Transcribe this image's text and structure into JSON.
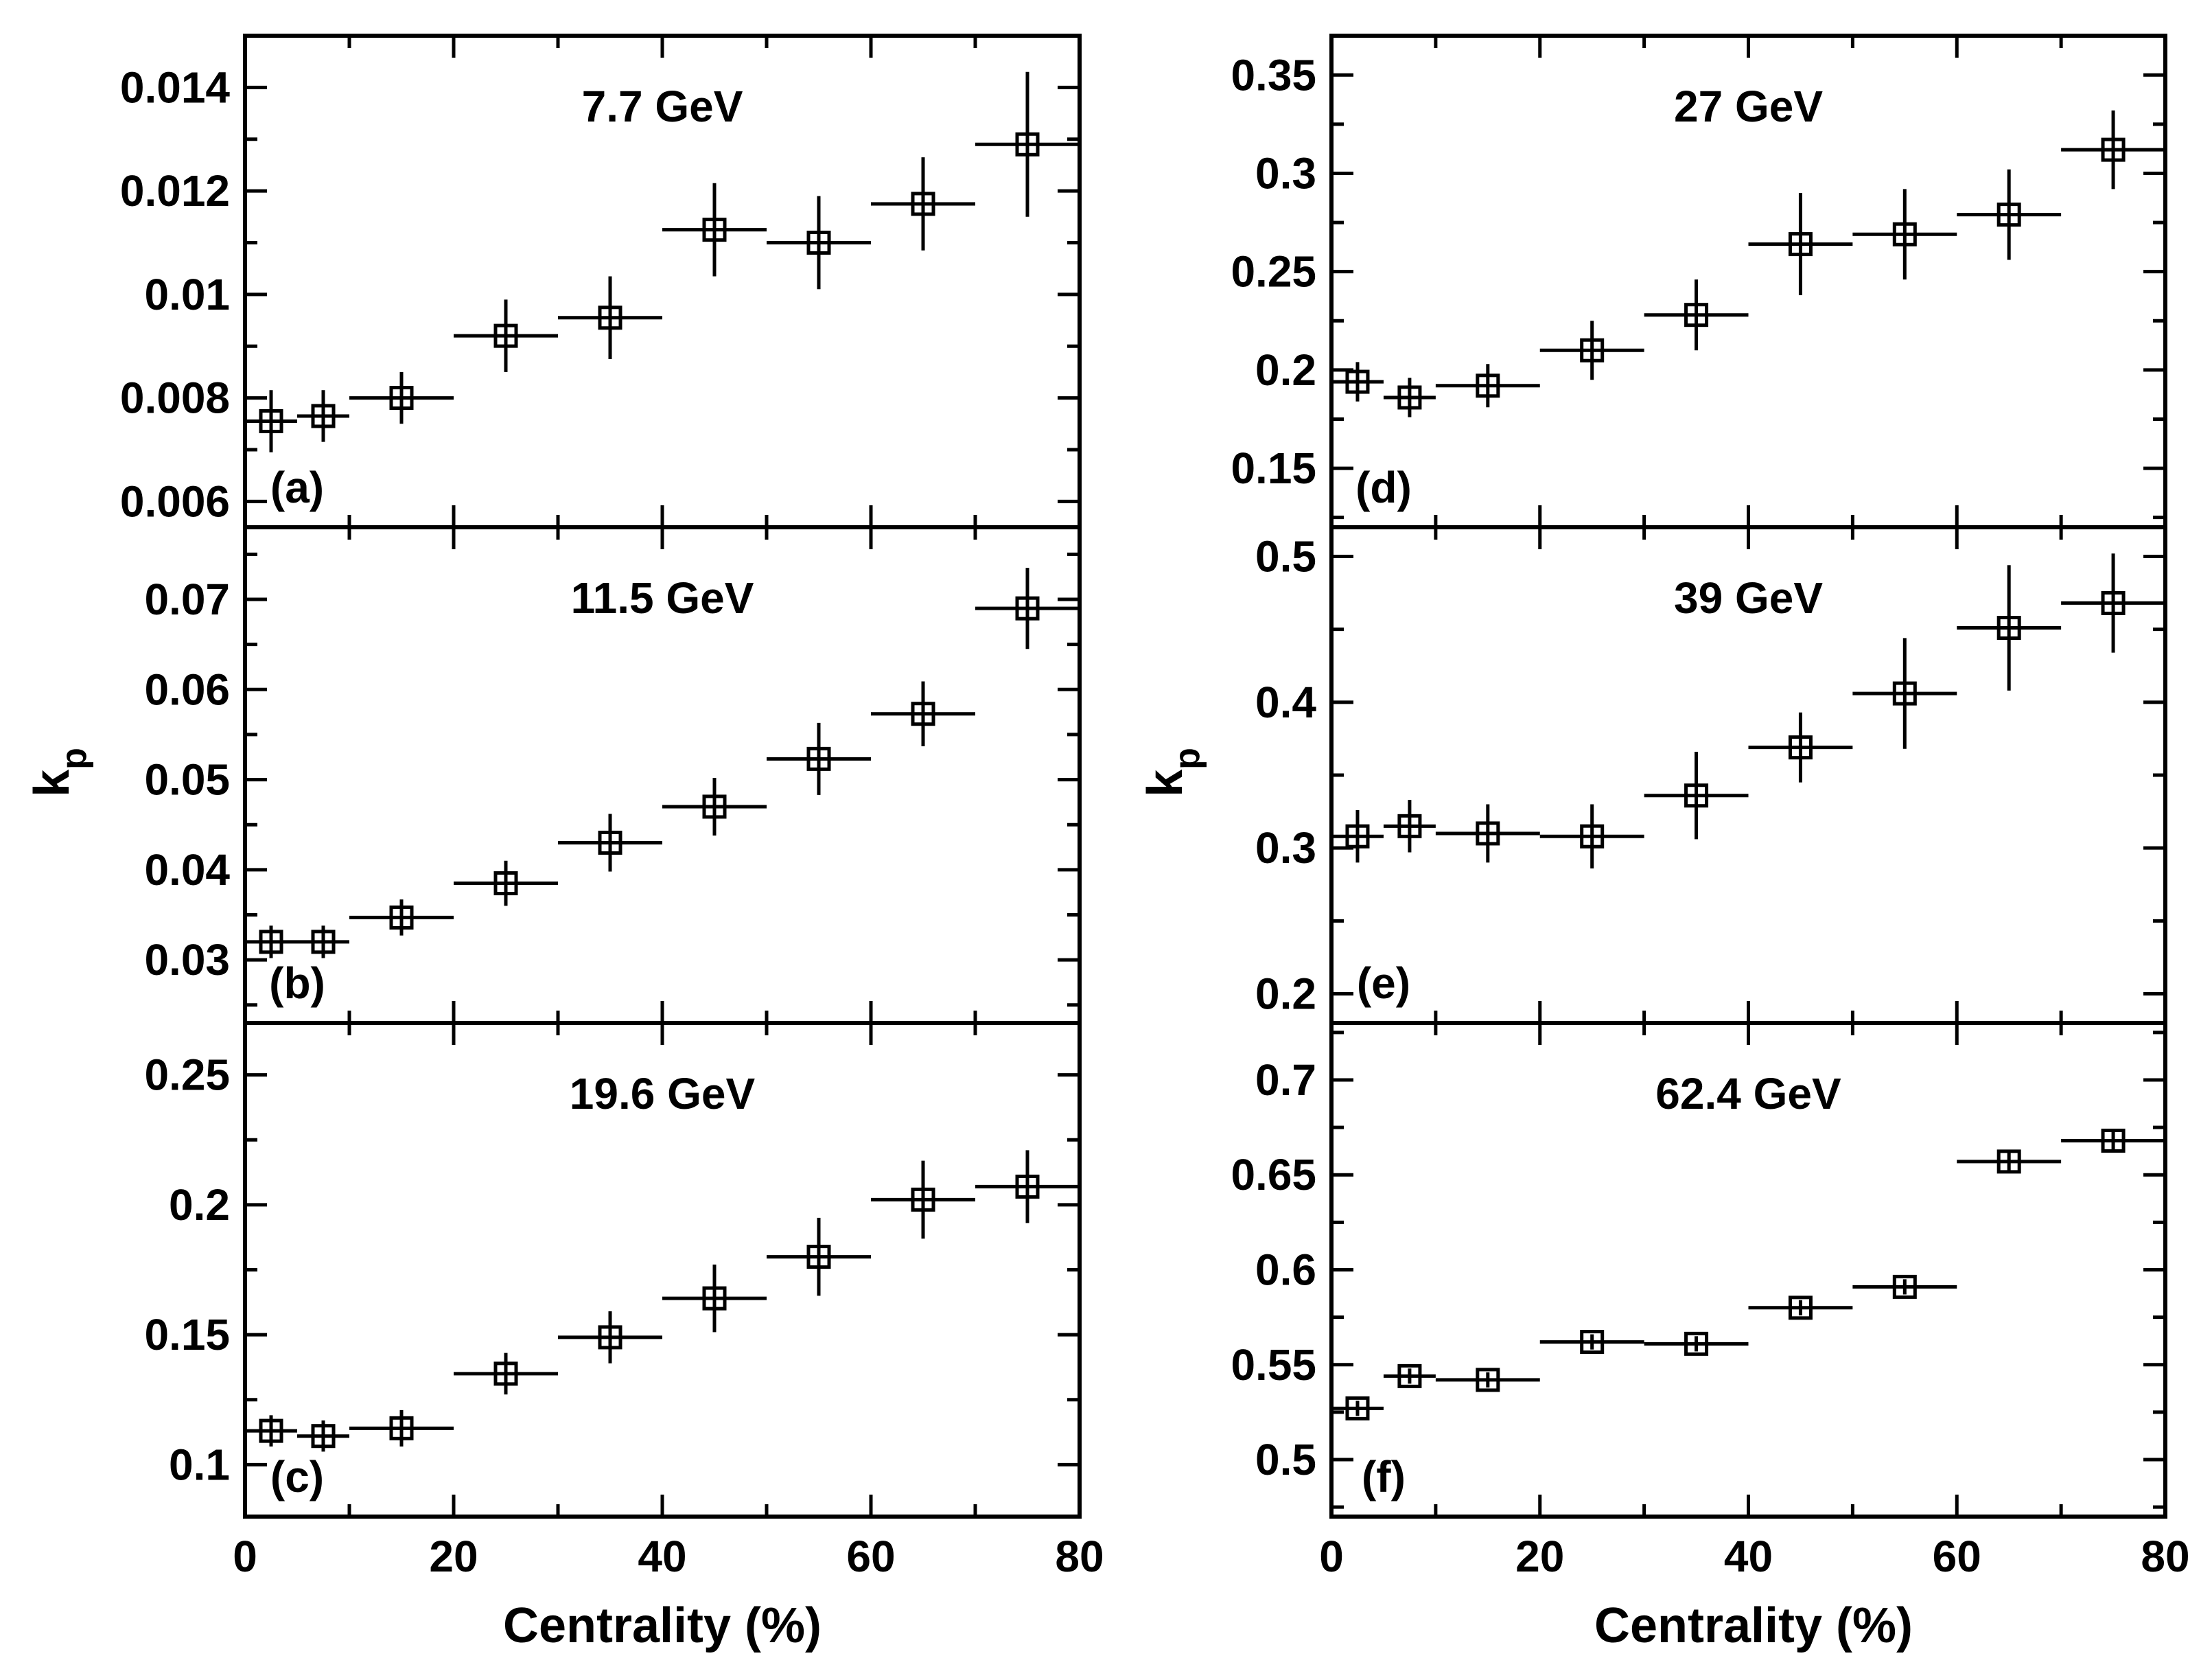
{
  "chart_data": [
    {
      "type": "scatter",
      "panel": "(a)",
      "energy": "7.7 GeV",
      "ylabel": "k_p",
      "ylim": [
        0.0055,
        0.015
      ],
      "yticks": [
        0.006,
        0.008,
        0.01,
        0.012,
        0.014
      ],
      "ytick_labels": [
        "0.006",
        "0.008",
        "0.01",
        "0.012",
        "0.014"
      ],
      "points": [
        {
          "x": 2.5,
          "y": 0.00755,
          "xlo": 0,
          "xhi": 5,
          "yerr": 0.0006
        },
        {
          "x": 7.5,
          "y": 0.00765,
          "xlo": 5,
          "xhi": 10,
          "yerr": 0.0005
        },
        {
          "x": 15,
          "y": 0.008,
          "xlo": 10,
          "xhi": 20,
          "yerr": 0.0005
        },
        {
          "x": 25,
          "y": 0.0092,
          "xlo": 20,
          "xhi": 30,
          "yerr": 0.0007
        },
        {
          "x": 35,
          "y": 0.00955,
          "xlo": 30,
          "xhi": 40,
          "yerr": 0.0008
        },
        {
          "x": 45,
          "y": 0.01125,
          "xlo": 40,
          "xhi": 50,
          "yerr": 0.0009
        },
        {
          "x": 55,
          "y": 0.011,
          "xlo": 50,
          "xhi": 60,
          "yerr": 0.0009
        },
        {
          "x": 65,
          "y": 0.01175,
          "xlo": 60,
          "xhi": 70,
          "yerr": 0.0009
        },
        {
          "x": 75,
          "y": 0.0129,
          "xlo": 70,
          "xhi": 80,
          "yerr": 0.0014
        }
      ]
    },
    {
      "type": "scatter",
      "panel": "(b)",
      "energy": "11.5 GeV",
      "ylabel": "k_p",
      "ylim": [
        0.023,
        0.078
      ],
      "yticks": [
        0.03,
        0.04,
        0.05,
        0.06,
        0.07
      ],
      "ytick_labels": [
        "0.03",
        "0.04",
        "0.05",
        "0.06",
        "0.07"
      ],
      "points": [
        {
          "x": 2.5,
          "y": 0.032,
          "xlo": 0,
          "xhi": 5,
          "yerr": 0.0018
        },
        {
          "x": 7.5,
          "y": 0.032,
          "xlo": 5,
          "xhi": 10,
          "yerr": 0.0018
        },
        {
          "x": 15,
          "y": 0.0347,
          "xlo": 10,
          "xhi": 20,
          "yerr": 0.002
        },
        {
          "x": 25,
          "y": 0.0385,
          "xlo": 20,
          "xhi": 30,
          "yerr": 0.0025
        },
        {
          "x": 35,
          "y": 0.043,
          "xlo": 30,
          "xhi": 40,
          "yerr": 0.0032
        },
        {
          "x": 45,
          "y": 0.047,
          "xlo": 40,
          "xhi": 50,
          "yerr": 0.0032
        },
        {
          "x": 55,
          "y": 0.0523,
          "xlo": 50,
          "xhi": 60,
          "yerr": 0.004
        },
        {
          "x": 65,
          "y": 0.0573,
          "xlo": 60,
          "xhi": 70,
          "yerr": 0.0036
        },
        {
          "x": 75,
          "y": 0.069,
          "xlo": 70,
          "xhi": 80,
          "yerr": 0.0045
        }
      ]
    },
    {
      "type": "scatter",
      "panel": "(c)",
      "energy": "19.6 GeV",
      "ylabel": "",
      "ylim": [
        0.08,
        0.27
      ],
      "yticks": [
        0.1,
        0.15,
        0.2,
        0.25
      ],
      "ytick_labels": [
        "0.1",
        "0.15",
        "0.2",
        "0.25"
      ],
      "points": [
        {
          "x": 2.5,
          "y": 0.113,
          "xlo": 0,
          "xhi": 5,
          "yerr": 0.006
        },
        {
          "x": 7.5,
          "y": 0.111,
          "xlo": 5,
          "xhi": 10,
          "yerr": 0.006
        },
        {
          "x": 15,
          "y": 0.114,
          "xlo": 10,
          "xhi": 20,
          "yerr": 0.007
        },
        {
          "x": 25,
          "y": 0.135,
          "xlo": 20,
          "xhi": 30,
          "yerr": 0.008
        },
        {
          "x": 35,
          "y": 0.149,
          "xlo": 30,
          "xhi": 40,
          "yerr": 0.01
        },
        {
          "x": 45,
          "y": 0.164,
          "xlo": 40,
          "xhi": 50,
          "yerr": 0.013
        },
        {
          "x": 55,
          "y": 0.18,
          "xlo": 50,
          "xhi": 60,
          "yerr": 0.015
        },
        {
          "x": 65,
          "y": 0.202,
          "xlo": 60,
          "xhi": 70,
          "yerr": 0.015
        },
        {
          "x": 75,
          "y": 0.207,
          "xlo": 70,
          "xhi": 80,
          "yerr": 0.014
        }
      ]
    },
    {
      "type": "scatter",
      "panel": "(d)",
      "energy": "27 GeV",
      "ylabel": "",
      "ylim": [
        0.12,
        0.37
      ],
      "yticks": [
        0.15,
        0.2,
        0.25,
        0.3,
        0.35
      ],
      "ytick_labels": [
        "0.15",
        "0.2",
        "0.25",
        "0.3",
        "0.35"
      ],
      "points": [
        {
          "x": 2.5,
          "y": 0.194,
          "xlo": 0,
          "xhi": 5,
          "yerr": 0.01
        },
        {
          "x": 7.5,
          "y": 0.186,
          "xlo": 5,
          "xhi": 10,
          "yerr": 0.01
        },
        {
          "x": 15,
          "y": 0.192,
          "xlo": 10,
          "xhi": 20,
          "yerr": 0.011
        },
        {
          "x": 25,
          "y": 0.21,
          "xlo": 20,
          "xhi": 30,
          "yerr": 0.015
        },
        {
          "x": 35,
          "y": 0.228,
          "xlo": 30,
          "xhi": 40,
          "yerr": 0.018
        },
        {
          "x": 45,
          "y": 0.264,
          "xlo": 40,
          "xhi": 50,
          "yerr": 0.026
        },
        {
          "x": 55,
          "y": 0.269,
          "xlo": 50,
          "xhi": 60,
          "yerr": 0.023
        },
        {
          "x": 65,
          "y": 0.279,
          "xlo": 60,
          "xhi": 70,
          "yerr": 0.023
        },
        {
          "x": 75,
          "y": 0.312,
          "xlo": 70,
          "xhi": 80,
          "yerr": 0.02
        }
      ]
    },
    {
      "type": "scatter",
      "panel": "(e)",
      "energy": "39 GeV",
      "ylabel": "k_p",
      "ylim": [
        0.18,
        0.52
      ],
      "yticks": [
        0.2,
        0.3,
        0.4,
        0.5
      ],
      "ytick_labels": [
        "0.2",
        "0.3",
        "0.4",
        "0.5"
      ],
      "points": [
        {
          "x": 2.5,
          "y": 0.308,
          "xlo": 0,
          "xhi": 5,
          "yerr": 0.018
        },
        {
          "x": 7.5,
          "y": 0.315,
          "xlo": 5,
          "xhi": 10,
          "yerr": 0.018
        },
        {
          "x": 15,
          "y": 0.31,
          "xlo": 10,
          "xhi": 20,
          "yerr": 0.02
        },
        {
          "x": 25,
          "y": 0.308,
          "xlo": 20,
          "xhi": 30,
          "yerr": 0.022
        },
        {
          "x": 35,
          "y": 0.336,
          "xlo": 30,
          "xhi": 40,
          "yerr": 0.03
        },
        {
          "x": 45,
          "y": 0.369,
          "xlo": 40,
          "xhi": 50,
          "yerr": 0.024
        },
        {
          "x": 55,
          "y": 0.406,
          "xlo": 50,
          "xhi": 60,
          "yerr": 0.038
        },
        {
          "x": 65,
          "y": 0.451,
          "xlo": 60,
          "xhi": 70,
          "yerr": 0.043
        },
        {
          "x": 75,
          "y": 0.468,
          "xlo": 70,
          "xhi": 80,
          "yerr": 0.034
        }
      ]
    },
    {
      "type": "scatter",
      "panel": "(f)",
      "energy": "62.4 GeV",
      "ylabel": "",
      "ylim": [
        0.47,
        0.73
      ],
      "yticks": [
        0.5,
        0.55,
        0.6,
        0.65,
        0.7
      ],
      "ytick_labels": [
        "0.5",
        "0.55",
        "0.6",
        "0.65",
        "0.7"
      ],
      "points": [
        {
          "x": 2.5,
          "y": 0.527,
          "xlo": 0,
          "xhi": 5,
          "yerr": 0.004
        },
        {
          "x": 7.5,
          "y": 0.544,
          "xlo": 5,
          "xhi": 10,
          "yerr": 0.004
        },
        {
          "x": 15,
          "y": 0.542,
          "xlo": 10,
          "xhi": 20,
          "yerr": 0.004
        },
        {
          "x": 25,
          "y": 0.562,
          "xlo": 20,
          "xhi": 30,
          "yerr": 0.004
        },
        {
          "x": 35,
          "y": 0.561,
          "xlo": 30,
          "xhi": 40,
          "yerr": 0.004
        },
        {
          "x": 45,
          "y": 0.58,
          "xlo": 40,
          "xhi": 50,
          "yerr": 0.004
        },
        {
          "x": 55,
          "y": 0.591,
          "xlo": 50,
          "xhi": 60,
          "yerr": 0.004
        },
        {
          "x": 65,
          "y": 0.657,
          "xlo": 60,
          "xhi": 70,
          "yerr": 0.006
        },
        {
          "x": 75,
          "y": 0.668,
          "xlo": 70,
          "xhi": 80,
          "yerr": 0.006
        }
      ]
    }
  ],
  "axes": {
    "xlabel": "Centrality (%)",
    "xlim": [
      0,
      80
    ],
    "xticks": [
      0,
      20,
      40,
      60,
      80
    ],
    "xtick_labels": [
      "0",
      "20",
      "40",
      "60",
      "80"
    ],
    "ylabel_main": "k",
    "ylabel_sub": "p"
  },
  "style": {
    "ink": "#000000",
    "background": "#ffffff"
  }
}
